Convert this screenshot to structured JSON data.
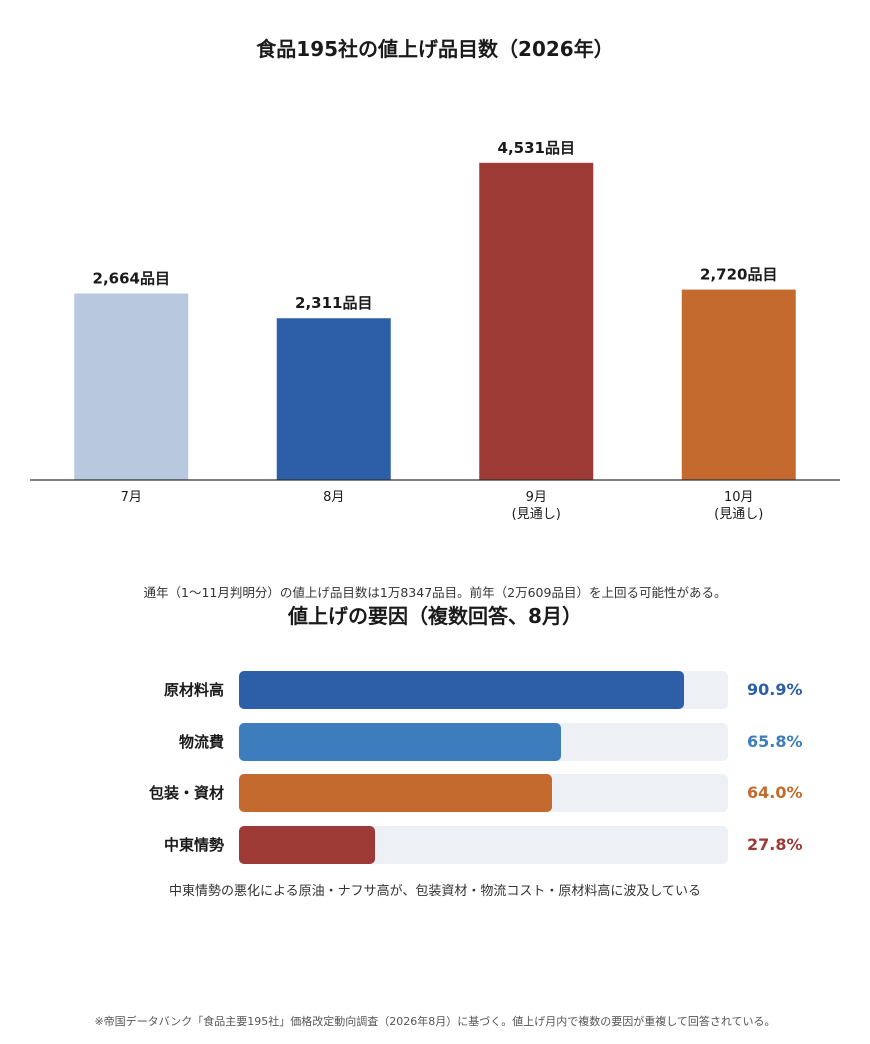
{
  "chart_data": [
    {
      "type": "bar",
      "title": "食品195社の値上げ品目数（2026年）",
      "categories": [
        "7月",
        "8月",
        "9月\n(見通し)",
        "10月\n(見通し)"
      ],
      "values": [
        2664,
        2311,
        4531,
        2720
      ],
      "data_labels": [
        "2,664品目",
        "2,311品目",
        "4,531品目",
        "2,720品目"
      ],
      "colors": [
        "#b8c9df",
        "#2d5fa8",
        "#9e3a36",
        "#c46a2e"
      ],
      "ylim": [
        0,
        5000
      ],
      "grid": false,
      "note": "通年（1〜11月判明分）の値上げ品目数は1万8347品目。前年（2万609品目）を上回る可能性がある。"
    },
    {
      "type": "bar",
      "orientation": "horizontal",
      "title": "値上げの要因（複数回答、8月）",
      "categories": [
        "原材料高",
        "物流費",
        "包装・資材",
        "中東情勢"
      ],
      "values": [
        90.9,
        65.8,
        64.0,
        27.8
      ],
      "data_labels": [
        "90.9%",
        "65.8%",
        "64.0%",
        "27.8%"
      ],
      "colors": [
        "#2d5fa8",
        "#3e7dbd",
        "#c46a2e",
        "#9e3a36"
      ],
      "xlim": [
        0,
        100
      ],
      "note": "中東情勢の悪化による原油・ナフサ高が、包装資材・物流コスト・原材料高に波及している"
    }
  ],
  "footnote": "※帝国データバンク「食品主要195社」価格改定動向調査（2026年8月）に基づく。値上げ月内で複数の要因が重複して回答されている。",
  "colors": {
    "track": "#edf1f6",
    "axis": "#333333"
  }
}
